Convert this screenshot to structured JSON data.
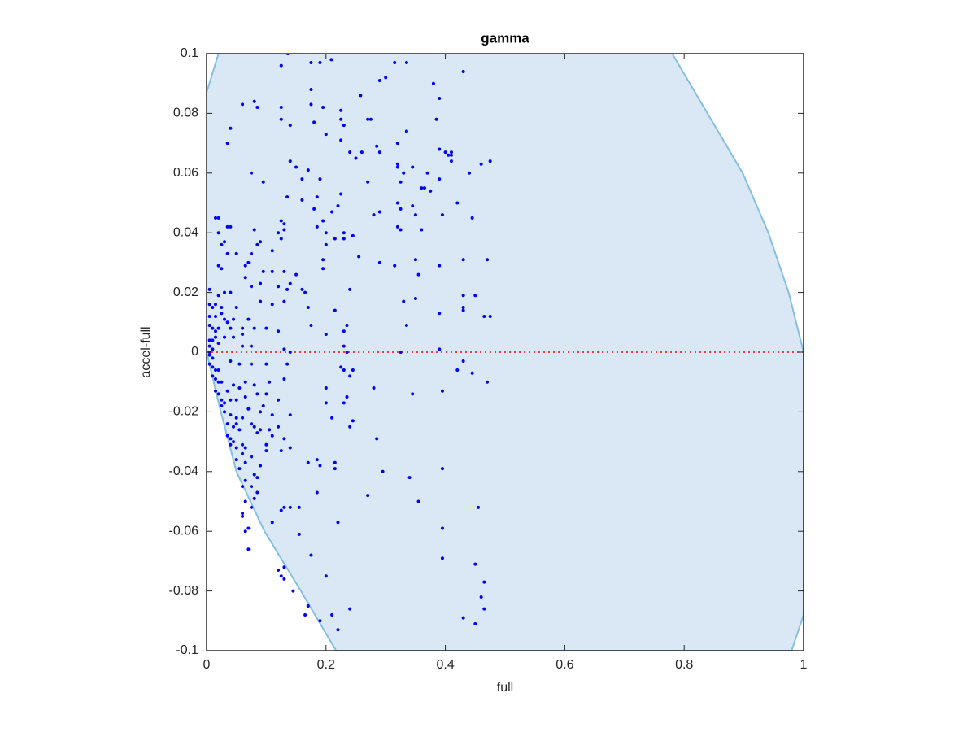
{
  "chart_data": {
    "type": "scatter",
    "title": "gamma",
    "x_label": "full",
    "y_label": "accel-full",
    "xlim": [
      0,
      1
    ],
    "ylim": [
      -0.1,
      0.1
    ],
    "xticks": [
      0,
      0.2,
      0.4,
      0.6,
      0.8,
      1
    ],
    "yticks": [
      -0.1,
      -0.08,
      -0.06,
      -0.04,
      -0.02,
      0,
      0.02,
      0.04,
      0.06,
      0.08,
      0.1
    ],
    "grid": false,
    "color": "#0000ff",
    "region": {
      "color": "#d9e8f4",
      "edge_color": "#86bfe0",
      "x": [
        0,
        0.02,
        0.78,
        0.839,
        0.898,
        0.941,
        0.975,
        1,
        1,
        0.98,
        0.217,
        0.158,
        0.097,
        0.05,
        0.022,
        0.006,
        0
      ],
      "y": [
        0.087,
        0.1,
        0.1,
        0.08,
        0.06,
        0.04,
        0.02,
        0,
        -0.088,
        -0.1,
        -0.1,
        -0.08,
        -0.06,
        -0.04,
        -0.0185,
        -0.005,
        0
      ]
    },
    "reference_line": {
      "color": "#ff0000",
      "x": [
        0,
        1
      ],
      "y": [
        0,
        0
      ]
    },
    "x": [
      0.136,
      0.125,
      0.175,
      0.19,
      0.209,
      0.315,
      0.335,
      0.29,
      0.3,
      0.43,
      0.38,
      0.175,
      0.39,
      0.06,
      0.08,
      0.085,
      0.125,
      0.175,
      0.195,
      0.225,
      0.258,
      0.27,
      0.275,
      0.225,
      0.125,
      0.14,
      0.18,
      0.23,
      0.335,
      0.385,
      0.04,
      0.035,
      0.2,
      0.225,
      0.32,
      0.26,
      0.285,
      0.24,
      0.29,
      0.39,
      0.4,
      0.41,
      0.405,
      0.41,
      0.475,
      0.46,
      0.14,
      0.15,
      0.32,
      0.32,
      0.25,
      0.41,
      0.345,
      0.17,
      0.075,
      0.095,
      0.16,
      0.19,
      0.33,
      0.37,
      0.44,
      0.325,
      0.27,
      0.39,
      0.36,
      0.365,
      0.375,
      0.16,
      0.135,
      0.225,
      0.185,
      0.18,
      0.22,
      0.32,
      0.325,
      0.345,
      0.29,
      0.42,
      0.015,
      0.02,
      0.28,
      0.35,
      0.395,
      0.445,
      0.21,
      0.195,
      0.125,
      0.13,
      0.035,
      0.04,
      0.08,
      0.12,
      0.13,
      0.185,
      0.2,
      0.23,
      0.32,
      0.36,
      0.245,
      0.215,
      0.02,
      0.125,
      0.325,
      0.025,
      0.03,
      0.09,
      0.085,
      0.11,
      0.2,
      0.23,
      0.05,
      0.035,
      0.075,
      0.195,
      0.255,
      0.35,
      0.43,
      0.47,
      0.025,
      0.02,
      0.065,
      0.07,
      0.29,
      0.315,
      0.39,
      0.095,
      0.11,
      0.13,
      0.15,
      0.195,
      0.355,
      0.065,
      0.075,
      0.09,
      0.14,
      0.12,
      0.005,
      0.02,
      0.03,
      0.04,
      0.135,
      0.16,
      0.165,
      0.24,
      0.43,
      0.45,
      0.35,
      0.33,
      0.005,
      0.015,
      0.01,
      0.025,
      0.05,
      0.09,
      0.11,
      0.13,
      0.025,
      0.005,
      0.015,
      0.03,
      0.045,
      0.07,
      0.17,
      0.215,
      0.43,
      0.43,
      0.39,
      0.465,
      0.475,
      0.035,
      0.005,
      0.01,
      0.015,
      0.02,
      0.04,
      0.06,
      0.08,
      0.1,
      0.12,
      0.175,
      0.235,
      0.23,
      0.335,
      0.2,
      0.015,
      0.03,
      0.045,
      0.06,
      0.005,
      0.01,
      0.005,
      0.01,
      0.02,
      0.005,
      0.005,
      0.01,
      0.06,
      0.075,
      0.13,
      0.14,
      0.23,
      0.235,
      0.325,
      0.39,
      0.43,
      0.005,
      0.01,
      0.015,
      0.02,
      0.01,
      0.015,
      0.02,
      0.025,
      0.04,
      0.055,
      0.075,
      0.1,
      0.135,
      0.225,
      0.23,
      0.245,
      0.24,
      0.42,
      0.445,
      0.015,
      0.02,
      0.025,
      0.035,
      0.045,
      0.055,
      0.065,
      0.08,
      0.105,
      0.13,
      0.2,
      0.28,
      0.47,
      0.025,
      0.03,
      0.04,
      0.05,
      0.065,
      0.085,
      0.1,
      0.07,
      0.095,
      0.12,
      0.2,
      0.23,
      0.235,
      0.345,
      0.395,
      0.03,
      0.04,
      0.05,
      0.06,
      0.09,
      0.11,
      0.14,
      0.21,
      0.245,
      0.24,
      0.035,
      0.045,
      0.05,
      0.075,
      0.12,
      0.035,
      0.04,
      0.045,
      0.055,
      0.08,
      0.085,
      0.09,
      0.105,
      0.11,
      0.13,
      0.04,
      0.05,
      0.06,
      0.065,
      0.1,
      0.1,
      0.125,
      0.05,
      0.06,
      0.075,
      0.14,
      0.285,
      0.055,
      0.065,
      0.09,
      0.17,
      0.185,
      0.19,
      0.215,
      0.215,
      0.08,
      0.085,
      0.065,
      0.06,
      0.075,
      0.085,
      0.08,
      0.295,
      0.34,
      0.395,
      0.185,
      0.27,
      0.065,
      0.075,
      0.13,
      0.125,
      0.14,
      0.155,
      0.355,
      0.455,
      0.06,
      0.06,
      0.11,
      0.07,
      0.065,
      0.07,
      0.155,
      0.22,
      0.395,
      0.175,
      0.12,
      0.13,
      0.125,
      0.13,
      0.2,
      0.395,
      0.45,
      0.145,
      0.17,
      0.165,
      0.21,
      0.19,
      0.22,
      0.24,
      0.43,
      0.45,
      0.465,
      0.46,
      0.465
    ],
    "values": [
      0.1,
      0.096,
      0.097,
      0.097,
      0.098,
      0.097,
      0.097,
      0.091,
      0.092,
      0.094,
      0.09,
      0.088,
      0.085,
      0.083,
      0.084,
      0.082,
      0.082,
      0.083,
      0.082,
      0.081,
      0.086,
      0.078,
      0.078,
      0.078,
      0.078,
      0.076,
      0.077,
      0.076,
      0.074,
      0.078,
      0.075,
      0.07,
      0.073,
      0.071,
      0.07,
      0.067,
      0.069,
      0.067,
      0.067,
      0.068,
      0.067,
      0.067,
      0.066,
      0.066,
      0.064,
      0.063,
      0.064,
      0.062,
      0.063,
      0.062,
      0.065,
      0.064,
      0.062,
      0.061,
      0.06,
      0.057,
      0.058,
      0.058,
      0.06,
      0.06,
      0.06,
      0.057,
      0.057,
      0.058,
      0.055,
      0.055,
      0.054,
      0.051,
      0.052,
      0.053,
      0.052,
      0.048,
      0.049,
      0.05,
      0.048,
      0.049,
      0.047,
      0.05,
      0.045,
      0.045,
      0.046,
      0.046,
      0.046,
      0.045,
      0.047,
      0.044,
      0.044,
      0.043,
      0.042,
      0.042,
      0.041,
      0.04,
      0.041,
      0.042,
      0.04,
      0.04,
      0.042,
      0.041,
      0.039,
      0.038,
      0.04,
      0.038,
      0.041,
      0.036,
      0.037,
      0.037,
      0.036,
      0.034,
      0.036,
      0.038,
      0.033,
      0.033,
      0.033,
      0.031,
      0.032,
      0.031,
      0.031,
      0.031,
      0.028,
      0.029,
      0.029,
      0.03,
      0.03,
      0.029,
      0.029,
      0.027,
      0.027,
      0.027,
      0.026,
      0.028,
      0.026,
      0.025,
      0.022,
      0.023,
      0.023,
      0.022,
      0.021,
      0.019,
      0.02,
      0.02,
      0.021,
      0.021,
      0.02,
      0.021,
      0.019,
      0.019,
      0.018,
      0.017,
      0.016,
      0.016,
      0.015,
      0.015,
      0.015,
      0.017,
      0.016,
      0.017,
      0.013,
      0.012,
      0.012,
      0.011,
      0.011,
      0.011,
      0.015,
      0.014,
      0.014,
      0.015,
      0.013,
      0.012,
      0.012,
      0.01,
      0.009,
      0.008,
      0.007,
      0.008,
      0.008,
      0.008,
      0.008,
      0.008,
      0.007,
      0.009,
      0.009,
      0.007,
      0.009,
      0.006,
      0.005,
      0.005,
      0.005,
      0.006,
      0.004,
      0.004,
      0.002,
      0.001,
      0.003,
      -0.001,
      0,
      -0.002,
      0.002,
      0.002,
      0.001,
      0,
      0.002,
      0,
      0,
      0.001,
      -0.003,
      -0.004,
      -0.005,
      -0.006,
      -0.006,
      -0.008,
      -0.009,
      -0.01,
      -0.01,
      -0.003,
      -0.004,
      -0.004,
      -0.004,
      -0.004,
      -0.005,
      -0.006,
      -0.006,
      -0.008,
      -0.006,
      -0.007,
      -0.013,
      -0.014,
      -0.016,
      -0.013,
      -0.011,
      -0.012,
      -0.01,
      -0.011,
      -0.01,
      -0.009,
      -0.012,
      -0.012,
      -0.01,
      -0.018,
      -0.017,
      -0.016,
      -0.016,
      -0.015,
      -0.014,
      -0.014,
      -0.019,
      -0.018,
      -0.016,
      -0.017,
      -0.017,
      -0.015,
      -0.014,
      -0.013,
      -0.02,
      -0.021,
      -0.022,
      -0.022,
      -0.02,
      -0.021,
      -0.021,
      -0.022,
      -0.023,
      -0.025,
      -0.024,
      -0.025,
      -0.024,
      -0.024,
      -0.025,
      -0.028,
      -0.029,
      -0.03,
      -0.026,
      -0.025,
      -0.027,
      -0.026,
      -0.026,
      -0.028,
      -0.029,
      -0.031,
      -0.032,
      -0.031,
      -0.032,
      -0.031,
      -0.033,
      -0.033,
      -0.036,
      -0.034,
      -0.035,
      -0.032,
      -0.029,
      -0.039,
      -0.037,
      -0.038,
      -0.037,
      -0.036,
      -0.038,
      -0.037,
      -0.039,
      -0.041,
      -0.042,
      -0.043,
      -0.045,
      -0.045,
      -0.047,
      -0.049,
      -0.04,
      -0.042,
      -0.039,
      -0.047,
      -0.048,
      -0.05,
      -0.052,
      -0.052,
      -0.053,
      -0.052,
      -0.052,
      -0.05,
      -0.052,
      -0.054,
      -0.055,
      -0.057,
      -0.059,
      -0.06,
      -0.066,
      -0.061,
      -0.057,
      -0.059,
      -0.068,
      -0.073,
      -0.072,
      -0.075,
      -0.076,
      -0.075,
      -0.069,
      -0.071,
      -0.08,
      -0.085,
      -0.088,
      -0.088,
      -0.09,
      -0.093,
      -0.086,
      -0.089,
      -0.091,
      -0.077,
      -0.082,
      -0.086
    ]
  }
}
